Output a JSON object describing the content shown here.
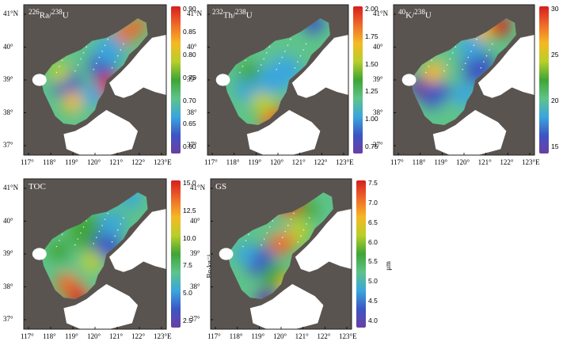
{
  "colors": {
    "sea_background": "#5a5450",
    "land": "#ffffff",
    "frame": "#222222",
    "colormap": [
      "#6a3fa3",
      "#3d55c4",
      "#3aa6dd",
      "#5ec38a",
      "#3fa535",
      "#b8cf2a",
      "#f5b923",
      "#ef6a2a",
      "#d61e1e"
    ]
  },
  "axes": {
    "lat_labels": [
      "41°N",
      "40°",
      "39°",
      "38°",
      "37°"
    ],
    "lon_labels": [
      "117°",
      "118°",
      "119°",
      "120°",
      "121°",
      "122°",
      "123°E"
    ]
  },
  "panels": [
    {
      "id": "ra",
      "title_html": "<sup>226</sup>Ra/<sup>238</sup>U",
      "colorbar_ticks": [
        "0.90",
        "0.85",
        "0.80",
        "0.75",
        "0.70",
        "0.65",
        "0.60"
      ],
      "unit": ""
    },
    {
      "id": "th",
      "title_html": "<sup>232</sup>Th/<sup>238</sup>U",
      "colorbar_ticks": [
        "2.00",
        "1.75",
        "1.50",
        "1.25",
        "1.00",
        "0.75"
      ],
      "unit": ""
    },
    {
      "id": "k",
      "title_html": "<sup>40</sup>K/<sup>238</sup>U",
      "colorbar_ticks": [
        "30",
        "25",
        "20",
        "15"
      ],
      "unit": ""
    },
    {
      "id": "toc",
      "title_html": "TOC",
      "colorbar_ticks": [
        "15.0",
        "12.5",
        "10.0",
        "7.5",
        "5.0",
        "2.5"
      ],
      "unit": "Bq·kg⁻¹"
    },
    {
      "id": "gs",
      "title_html": "GS",
      "colorbar_ticks": [
        "7.5",
        "7.0",
        "6.5",
        "6.0",
        "5.5",
        "5.0",
        "4.5",
        "4.0"
      ],
      "unit": "μm"
    }
  ]
}
